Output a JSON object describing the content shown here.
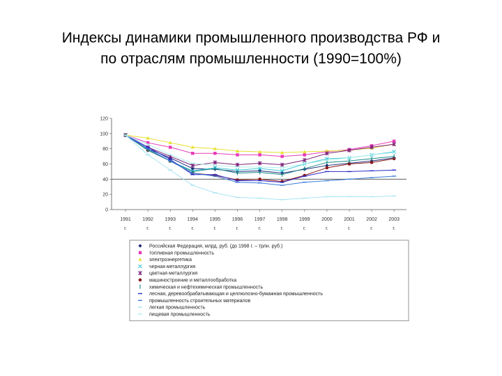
{
  "title_lines": [
    "Индексы динамики промышленного производства РФ и",
    "по отраслям промышленности (1990=100%)"
  ],
  "chart_data": {
    "type": "line",
    "x_ticks": [
      [
        "1991",
        "г."
      ],
      [
        "1992",
        "г."
      ],
      [
        "1993",
        "г."
      ],
      [
        "1994",
        "г."
      ],
      [
        "1995",
        "г."
      ],
      [
        "1996",
        "г."
      ],
      [
        "1997",
        "г."
      ],
      [
        "1998",
        "г."
      ],
      [
        "1999",
        "г."
      ],
      [
        "2000",
        "г."
      ],
      [
        "2001",
        "г."
      ],
      [
        "2002",
        "г."
      ],
      [
        "2003",
        "г."
      ]
    ],
    "y_ticks": [
      "0",
      "20",
      "40",
      "60",
      "80",
      "100",
      "120"
    ],
    "ylim": [
      0,
      120
    ],
    "legend_position": "bottom",
    "grid": false,
    "series": [
      {
        "name": "Российская Федерация, млрд. руб. (до 1998 г. – трлн. руб.)",
        "color": "#1f2a7a",
        "marker": "diamond",
        "values": [
          98,
          80,
          68,
          54,
          53,
          50,
          51,
          48,
          53,
          58,
          61,
          64,
          68
        ]
      },
      {
        "name": "топливная промышленность",
        "color": "#e83ab8",
        "marker": "square",
        "values": [
          98,
          88,
          82,
          74,
          74,
          72,
          72,
          70,
          72,
          76,
          79,
          84,
          90
        ]
      },
      {
        "name": "электроэнергетика",
        "color": "#e8e030",
        "marker": "triangle",
        "values": [
          98,
          94,
          88,
          82,
          80,
          77,
          76,
          75,
          76,
          77,
          78,
          81,
          86
        ]
      },
      {
        "name": "черная металлургия",
        "color": "#40c8d8",
        "marker": "x",
        "values": [
          98,
          79,
          64,
          51,
          55,
          52,
          54,
          51,
          60,
          67,
          68,
          72,
          76
        ]
      },
      {
        "name": "цветная металлургия",
        "color": "#7a1f7a",
        "marker": "star",
        "values": [
          98,
          82,
          70,
          58,
          62,
          59,
          61,
          59,
          65,
          74,
          78,
          82,
          86
        ]
      },
      {
        "name": "машиностроение и металлообработка",
        "color": "#8a1a1a",
        "marker": "circle",
        "values": [
          98,
          78,
          64,
          48,
          45,
          39,
          40,
          37,
          45,
          55,
          60,
          62,
          67
        ]
      },
      {
        "name": "химическая и нефтехимическая промышленность",
        "color": "#1a8a8a",
        "marker": "bar",
        "values": [
          98,
          78,
          64,
          50,
          54,
          48,
          49,
          46,
          54,
          62,
          64,
          67,
          70
        ]
      },
      {
        "name": "лесная, деревообрабатывающая и целлюлозно-бумажная промышленность",
        "color": "#2a2acf",
        "marker": "dash",
        "values": [
          98,
          82,
          66,
          46,
          46,
          38,
          38,
          36,
          44,
          50,
          50,
          51,
          52
        ]
      },
      {
        "name": "промышленность строительных материалов",
        "color": "#3a7ad8",
        "marker": "dash",
        "values": [
          98,
          80,
          64,
          48,
          44,
          36,
          35,
          32,
          36,
          38,
          40,
          42,
          44
        ]
      },
      {
        "name": "легкая промышленность",
        "color": "#a8e4f4",
        "marker": "dash",
        "values": [
          98,
          72,
          52,
          32,
          22,
          16,
          15,
          13,
          15,
          17,
          17,
          17,
          18
        ]
      },
      {
        "name": "пищевая промышленность",
        "color": "#b0f0ee",
        "marker": "dash",
        "values": [
          98,
          86,
          72,
          61,
          58,
          56,
          56,
          55,
          60,
          65,
          68,
          72,
          75
        ]
      }
    ]
  }
}
